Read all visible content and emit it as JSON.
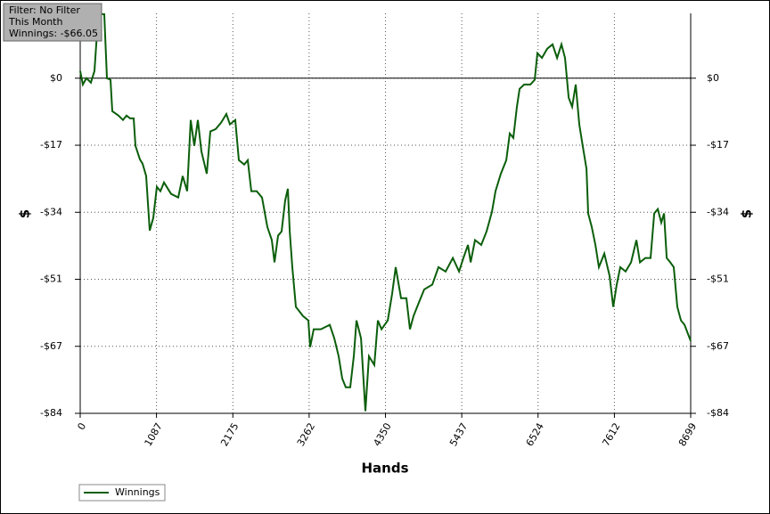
{
  "chart_data": {
    "type": "line",
    "annotations": [
      "Filter: No Filter",
      "This Month",
      "Winnings: -$66.05"
    ],
    "xlabel": "Hands",
    "ylabel": "$",
    "xlim": [
      0,
      8699
    ],
    "xticks": [
      0,
      1087,
      2175,
      3262,
      4350,
      5437,
      6524,
      7612,
      8699
    ],
    "ylim": [
      -84.25,
      16.3
    ],
    "yticks": [
      {
        "value": 0,
        "label": "$0"
      },
      {
        "value": -16.85,
        "label": "-$17"
      },
      {
        "value": -33.7,
        "label": "-$34"
      },
      {
        "value": -50.55,
        "label": "-$51"
      },
      {
        "value": -67.4,
        "label": "-$67"
      },
      {
        "value": -84.25,
        "label": "-$84"
      }
    ],
    "grid": true,
    "legend": "bottom-left",
    "x": [
      0,
      38,
      89,
      152,
      203,
      254,
      292,
      343,
      381,
      432,
      457,
      546,
      610,
      660,
      711,
      762,
      787,
      851,
      889,
      940,
      991,
      1041,
      1092,
      1143,
      1194,
      1295,
      1397,
      1461,
      1524,
      1575,
      1626,
      1676,
      1727,
      1803,
      1854,
      1930,
      2007,
      2083,
      2134,
      2210,
      2261,
      2337,
      2388,
      2438,
      2515,
      2591,
      2667,
      2730,
      2769,
      2819,
      2870,
      2921,
      2959,
      2985,
      3023,
      3073,
      3175,
      3251,
      3277,
      3327,
      3429,
      3556,
      3620,
      3683,
      3734,
      3785,
      3848,
      3899,
      3937,
      4001,
      4064,
      4115,
      4191,
      4242,
      4293,
      4382,
      4445,
      4496,
      4572,
      4648,
      4699,
      4750,
      4826,
      4902,
      5017,
      5105,
      5207,
      5309,
      5398,
      5461,
      5525,
      5563,
      5626,
      5715,
      5791,
      5867,
      5918,
      5994,
      6071,
      6121,
      6172,
      6223,
      6261,
      6325,
      6414,
      6477,
      6515,
      6579,
      6655,
      6731,
      6795,
      6858,
      6909,
      6960,
      7010,
      7061,
      7112,
      7163,
      7214,
      7239,
      7290,
      7341,
      7391,
      7468,
      7544,
      7595,
      7645,
      7696,
      7772,
      7849,
      7925,
      7976,
      8052,
      8128,
      8179,
      8230,
      8280,
      8319,
      8357,
      8408,
      8458,
      8509,
      8560,
      8611,
      8661,
      8699
    ],
    "series": [
      {
        "name": "Winnings",
        "color": "#0b5e0b",
        "values": [
          1.8,
          -1.6,
          0,
          -1.1,
          1.8,
          15.2,
          16.1,
          16.1,
          0,
          -0.4,
          -8.3,
          -9.4,
          -10.5,
          -9.4,
          -10.1,
          -10.1,
          -17.0,
          -20.4,
          -21.5,
          -24.6,
          -38.3,
          -35.1,
          -27.3,
          -28.4,
          -26.2,
          -29.1,
          -30.0,
          -24.6,
          -28.4,
          -10.5,
          -17.0,
          -10.5,
          -18.4,
          -24.0,
          -13.4,
          -12.8,
          -11.2,
          -9.0,
          -11.6,
          -10.5,
          -20.6,
          -21.7,
          -20.6,
          -28.4,
          -28.4,
          -30.0,
          -37.4,
          -40.7,
          -46.3,
          -39.6,
          -38.5,
          -30.7,
          -27.8,
          -38.5,
          -47.5,
          -57.5,
          -59.8,
          -60.9,
          -67.6,
          -63.1,
          -63.1,
          -62.0,
          -65.4,
          -69.9,
          -75.5,
          -77.7,
          -77.7,
          -69.9,
          -60.9,
          -65.4,
          -83.7,
          -69.9,
          -72.1,
          -60.9,
          -63.1,
          -60.9,
          -54.2,
          -47.5,
          -55.3,
          -55.3,
          -63.1,
          -59.8,
          -56.4,
          -53.1,
          -51.9,
          -47.5,
          -48.6,
          -45.2,
          -48.6,
          -45.2,
          -41.9,
          -46.3,
          -40.7,
          -41.9,
          -38.5,
          -33.6,
          -28.4,
          -24.0,
          -20.6,
          -13.9,
          -15.0,
          -7.2,
          -2.7,
          -1.6,
          -1.6,
          -0.4,
          6.3,
          5.1,
          7.4,
          8.5,
          5.1,
          8.5,
          5.1,
          -4.9,
          -7.2,
          -1.6,
          -11.6,
          -17.2,
          -22.8,
          -34.0,
          -37.4,
          -41.9,
          -47.5,
          -44.1,
          -49.7,
          -57.5,
          -51.9,
          -47.5,
          -48.6,
          -46.3,
          -40.7,
          -46.3,
          -45.2,
          -45.2,
          -34.0,
          -32.9,
          -36.3,
          -34.0,
          -45.2,
          -46.3,
          -47.5,
          -57.5,
          -60.9,
          -62.0,
          -64.3,
          -66.05
        ]
      }
    ]
  }
}
